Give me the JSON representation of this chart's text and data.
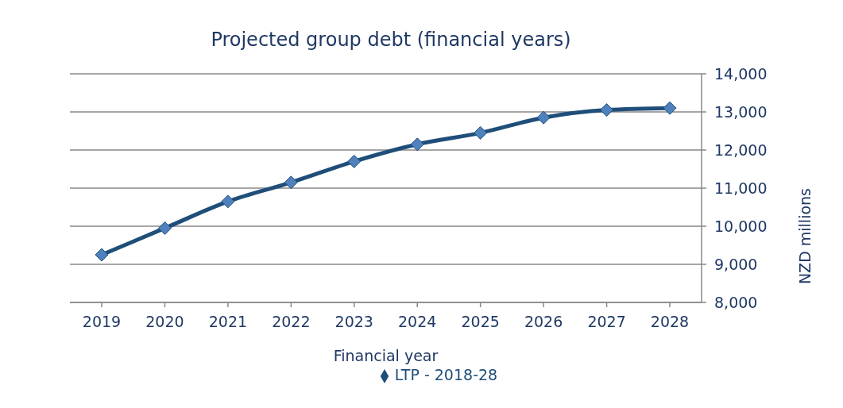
{
  "chart_data": {
    "type": "line",
    "title": "Projected group debt (financial years)",
    "xlabel": "Financial year",
    "ylabel": "NZD millions",
    "categories": [
      "2019",
      "2020",
      "2021",
      "2022",
      "2023",
      "2024",
      "2025",
      "2026",
      "2027",
      "2028"
    ],
    "series": [
      {
        "name": "LTP - 2018-28",
        "color": "#1f4e79",
        "values": [
          9250,
          9950,
          10650,
          11150,
          11700,
          12150,
          12450,
          12850,
          13050,
          13100
        ]
      }
    ],
    "ylim": [
      8000,
      14000
    ],
    "yticks": [
      {
        "value": 8000,
        "label": "8,000"
      },
      {
        "value": 9000,
        "label": "9,000"
      },
      {
        "value": 10000,
        "label": "10,000"
      },
      {
        "value": 11000,
        "label": "11,000"
      },
      {
        "value": 12000,
        "label": "12,000"
      },
      {
        "value": 13000,
        "label": "13,000"
      },
      {
        "value": 14000,
        "label": "14,000"
      }
    ],
    "grid": "y",
    "legend": "bottom",
    "marker": "diamond",
    "line_style": "solid"
  }
}
